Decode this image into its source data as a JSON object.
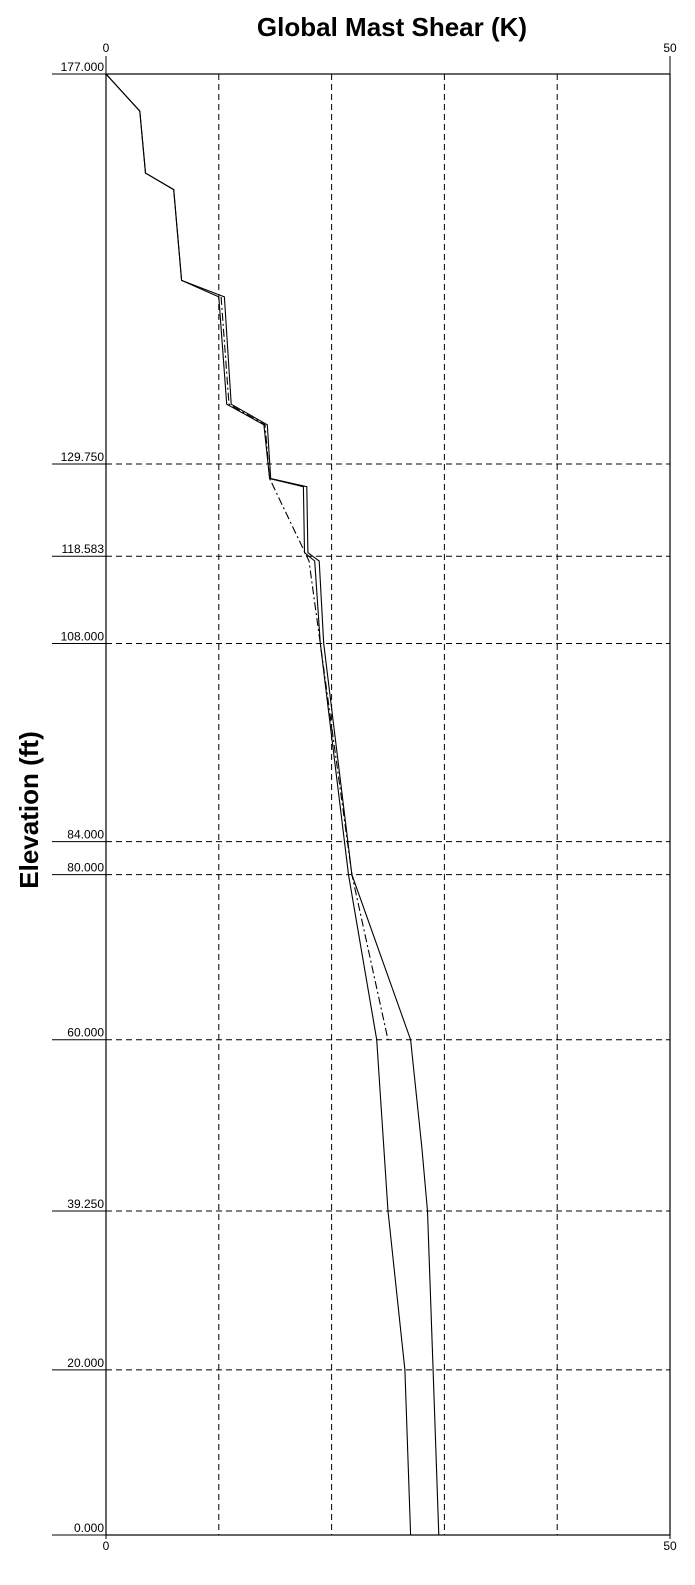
{
  "chart_data": {
    "type": "line",
    "title": "Global Mast Shear (K)",
    "ylabel": "Elevation (ft)",
    "xlim": [
      0,
      50
    ],
    "ylim": [
      0,
      177
    ],
    "x_tick_labels": [
      "0",
      "50"
    ],
    "x_grid_values": [
      10,
      20,
      30,
      40
    ],
    "y_ticks": [
      177,
      129.75,
      118.583,
      108,
      84,
      80,
      60,
      39.25,
      20,
      0
    ],
    "y_tick_labels": [
      "177.000",
      "129.750",
      "118.583",
      "108.000",
      "84.000",
      "80.000",
      "60.000",
      "39.250",
      "20.000",
      "0.000"
    ],
    "grid": true,
    "series": [
      {
        "style": "solid",
        "points": [
          [
            0,
            177
          ],
          [
            3,
            172.5
          ],
          [
            3.5,
            165
          ],
          [
            6,
            163
          ],
          [
            6.7,
            152
          ],
          [
            10,
            150
          ],
          [
            10.7,
            137
          ],
          [
            14,
            134.5
          ],
          [
            14.5,
            128
          ],
          [
            17.5,
            127
          ],
          [
            17.6,
            119
          ],
          [
            18.5,
            118
          ],
          [
            19,
            108
          ],
          [
            21.5,
            80
          ],
          [
            24,
            60
          ],
          [
            25,
            39.25
          ],
          [
            26.5,
            20
          ],
          [
            27,
            0
          ]
        ]
      },
      {
        "style": "solid",
        "points": [
          [
            0,
            177
          ],
          [
            3,
            172.5
          ],
          [
            3.5,
            165
          ],
          [
            6,
            163
          ],
          [
            6.7,
            152
          ],
          [
            10.5,
            150
          ],
          [
            11.1,
            137
          ],
          [
            14.3,
            134.5
          ],
          [
            14.6,
            128
          ],
          [
            17.8,
            127
          ],
          [
            17.9,
            119
          ],
          [
            18.9,
            118
          ],
          [
            19.3,
            108
          ],
          [
            21.8,
            80
          ],
          [
            27,
            60
          ],
          [
            28,
            47
          ],
          [
            28.5,
            39.25
          ],
          [
            29,
            20
          ],
          [
            29.5,
            0
          ]
        ]
      },
      {
        "style": "dashdot",
        "points": [
          [
            10.2,
            150
          ],
          [
            10.9,
            137
          ],
          [
            14.1,
            134.5
          ],
          [
            14.5,
            128
          ],
          [
            18,
            118
          ],
          [
            21,
            88
          ],
          [
            21.8,
            80
          ],
          [
            25,
            60
          ]
        ]
      }
    ]
  }
}
